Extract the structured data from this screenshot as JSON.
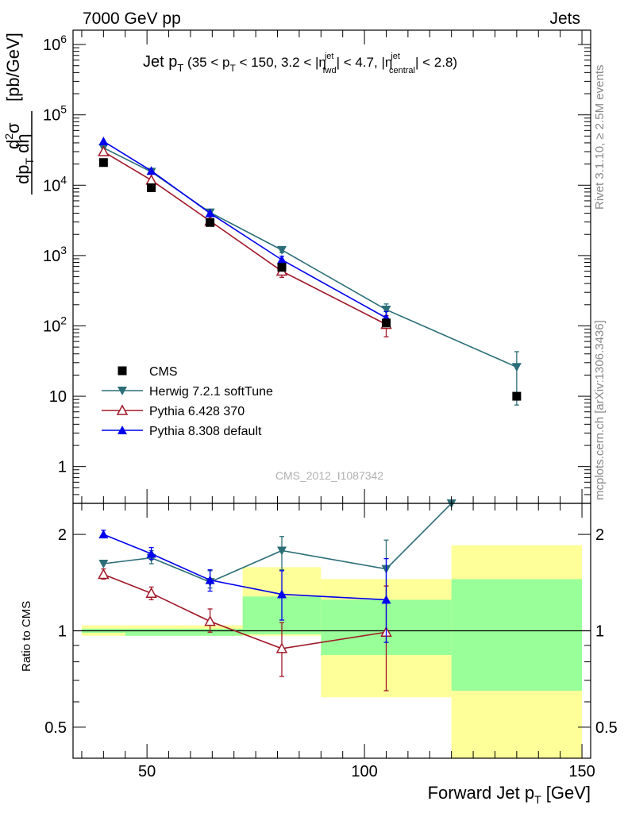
{
  "header": {
    "left": "7000 GeV pp",
    "right": "Jets"
  },
  "side_labels": {
    "rivet": "Rivet 3.1.10, ≥ 2.5M events",
    "mcplots": "mcplots.cern.ch [arXiv:1306.3436]"
  },
  "watermark": "CMS_2012_I1087342",
  "colors": {
    "cms": "#000000",
    "herwig": "#2b6e78",
    "pythia6": "#a01828",
    "pythia8": "#0000ee",
    "band_yellow": "#ffff99",
    "band_green": "#99ff99"
  },
  "chart_data": [
    {
      "type": "line",
      "title": "Jet pT (35 < pT < 150, 3.2 < |η_fwd^jet| < 4.7, |η_central^jet| < 2.8)",
      "ylabel": "d²σ / dpT dη [pb/GeV]",
      "yscale": "log",
      "xlim": [
        33,
        152
      ],
      "ylim": [
        0.3,
        1600000
      ],
      "yticks": [
        {
          "v": 1,
          "label": "1"
        },
        {
          "v": 10,
          "label": "10"
        },
        {
          "v": 100,
          "label": "10^2"
        },
        {
          "v": 1000,
          "label": "10^3"
        },
        {
          "v": 10000,
          "label": "10^4"
        },
        {
          "v": 100000,
          "label": "10^5"
        },
        {
          "v": 1000000,
          "label": "10^6"
        }
      ],
      "series": [
        {
          "key": "cms",
          "name": "CMS",
          "marker": "square",
          "points": [
            {
              "x": 40,
              "y": 21000
            },
            {
              "x": 51,
              "y": 9200
            },
            {
              "x": 64.5,
              "y": 2950
            },
            {
              "x": 81,
              "y": 680
            },
            {
              "x": 105,
              "y": 110
            },
            {
              "x": 135,
              "y": 10
            }
          ]
        },
        {
          "key": "herwig",
          "name": "Herwig 7.2.1 softTune",
          "marker": "triangle-down",
          "points": [
            {
              "x": 40,
              "y": 34000
            },
            {
              "x": 51,
              "y": 15500
            },
            {
              "x": 64.5,
              "y": 4100
            },
            {
              "x": 81,
              "y": 1200,
              "ylo": 1100,
              "yhi": 1320
            },
            {
              "x": 105,
              "y": 170,
              "ylo": 140,
              "yhi": 205
            },
            {
              "x": 135,
              "y": 26,
              "ylo": 7.5,
              "yhi": 43
            }
          ]
        },
        {
          "key": "pythia6",
          "name": "Pythia 6.428 370",
          "marker": "triangle-up-open",
          "points": [
            {
              "x": 40,
              "y": 30000
            },
            {
              "x": 51,
              "y": 11800
            },
            {
              "x": 64.5,
              "y": 3100
            },
            {
              "x": 81,
              "y": 600,
              "ylo": 490,
              "yhi": 720
            },
            {
              "x": 105,
              "y": 105,
              "ylo": 70,
              "yhi": 140
            }
          ]
        },
        {
          "key": "pythia8",
          "name": "Pythia 8.308 default",
          "marker": "triangle-up",
          "points": [
            {
              "x": 40,
              "y": 42000
            },
            {
              "x": 51,
              "y": 16000
            },
            {
              "x": 64.5,
              "y": 4000
            },
            {
              "x": 81,
              "y": 870,
              "ylo": 760,
              "yhi": 980
            },
            {
              "x": 105,
              "y": 130,
              "ylo": 105,
              "yhi": 160
            }
          ]
        }
      ],
      "legend_position": "lower-left"
    },
    {
      "type": "line",
      "ylabel": "Ratio to CMS",
      "xlabel": "Forward Jet pT [GeV]",
      "yscale": "log",
      "xlim": [
        33,
        152
      ],
      "ylim": [
        0.4,
        2.5
      ],
      "yticks": [
        {
          "v": 0.5,
          "label": "0.5"
        },
        {
          "v": 1,
          "label": "1"
        },
        {
          "v": 2,
          "label": "2"
        }
      ],
      "xticks": [
        {
          "v": 50,
          "label": "50"
        },
        {
          "v": 100,
          "label": "100"
        },
        {
          "v": 150,
          "label": "150"
        }
      ],
      "bands": [
        {
          "x0": 35,
          "x1": 45,
          "ylo": 0.965,
          "yhi": 1.04,
          "glo": 0.985,
          "ghi": 1.015
        },
        {
          "x0": 45,
          "x1": 57,
          "ylo": 0.965,
          "yhi": 1.04,
          "glo": 0.965,
          "ghi": 1.015
        },
        {
          "x0": 57,
          "x1": 72,
          "ylo": 0.965,
          "yhi": 1.04,
          "glo": 0.965,
          "ghi": 1.015
        },
        {
          "x0": 72,
          "x1": 90,
          "ylo": 0.965,
          "yhi": 1.58,
          "glo": 0.975,
          "ghi": 1.28
        },
        {
          "x0": 90,
          "x1": 120,
          "ylo": 0.62,
          "yhi": 1.45,
          "glo": 0.84,
          "ghi": 1.25
        },
        {
          "x0": 120,
          "x1": 150,
          "ylo": 0.4,
          "yhi": 1.85,
          "glo": 0.65,
          "ghi": 1.45
        }
      ],
      "series": [
        {
          "key": "herwig",
          "name": "Herwig 7.2.1 softTune",
          "marker": "triangle-down",
          "points": [
            {
              "x": 40,
              "y": 1.62
            },
            {
              "x": 51,
              "y": 1.69,
              "ylo": 1.62,
              "yhi": 1.78
            },
            {
              "x": 64.5,
              "y": 1.42,
              "ylo": 1.36,
              "yhi": 1.54
            },
            {
              "x": 81,
              "y": 1.78,
              "ylo": 1.55,
              "yhi": 1.97
            },
            {
              "x": 105,
              "y": 1.56,
              "ylo": 1.22,
              "yhi": 1.92
            },
            {
              "x": 120,
              "y": 2.5
            }
          ]
        },
        {
          "key": "pythia6",
          "name": "Pythia 6.428 370",
          "marker": "triangle-up-open",
          "points": [
            {
              "x": 40,
              "y": 1.5,
              "ylo": 1.45,
              "yhi": 1.56
            },
            {
              "x": 51,
              "y": 1.31,
              "ylo": 1.25,
              "yhi": 1.37
            },
            {
              "x": 64.5,
              "y": 1.07,
              "ylo": 0.99,
              "yhi": 1.17
            },
            {
              "x": 81,
              "y": 0.88,
              "ylo": 0.72,
              "yhi": 1.06
            },
            {
              "x": 105,
              "y": 0.99,
              "ylo": 0.65,
              "yhi": 1.38
            }
          ]
        },
        {
          "key": "pythia8",
          "name": "Pythia 8.308 default",
          "marker": "triangle-up",
          "points": [
            {
              "x": 40,
              "y": 2.0,
              "ylo": 1.96,
              "yhi": 2.06
            },
            {
              "x": 51,
              "y": 1.74,
              "ylo": 1.67,
              "yhi": 1.82
            },
            {
              "x": 64.5,
              "y": 1.44,
              "ylo": 1.33,
              "yhi": 1.55
            },
            {
              "x": 81,
              "y": 1.3,
              "ylo": 1.08,
              "yhi": 1.54
            },
            {
              "x": 105,
              "y": 1.25,
              "ylo": 0.92,
              "yhi": 1.68
            }
          ]
        }
      ]
    }
  ]
}
